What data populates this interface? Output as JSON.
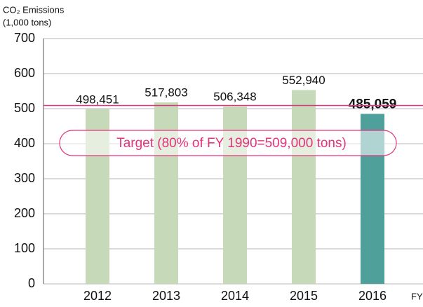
{
  "chart_data": {
    "type": "bar",
    "y_axis_title": [
      "CO₂ Emissions",
      "(1,000 tons)"
    ],
    "x_axis_label": "FY",
    "categories": [
      "2012",
      "2013",
      "2014",
      "2015",
      "2016"
    ],
    "values": [
      498.451,
      517.803,
      506.348,
      552.94,
      485.059
    ],
    "value_labels": [
      "498,451",
      "517,803",
      "506,348",
      "552,940",
      "485,059"
    ],
    "colors": [
      "#c6d9b8",
      "#c6d9b8",
      "#c6d9b8",
      "#c6d9b8",
      "#4fa09a"
    ],
    "bold_labels": [
      false,
      false,
      false,
      false,
      true
    ],
    "ylim": [
      0,
      700
    ],
    "yticks": [
      0,
      100,
      200,
      300,
      400,
      500,
      600,
      700
    ],
    "grid": true,
    "target": {
      "value": 509,
      "label": "Target (80% of FY 1990=509,000 tons)",
      "color": "#e2347d"
    }
  }
}
